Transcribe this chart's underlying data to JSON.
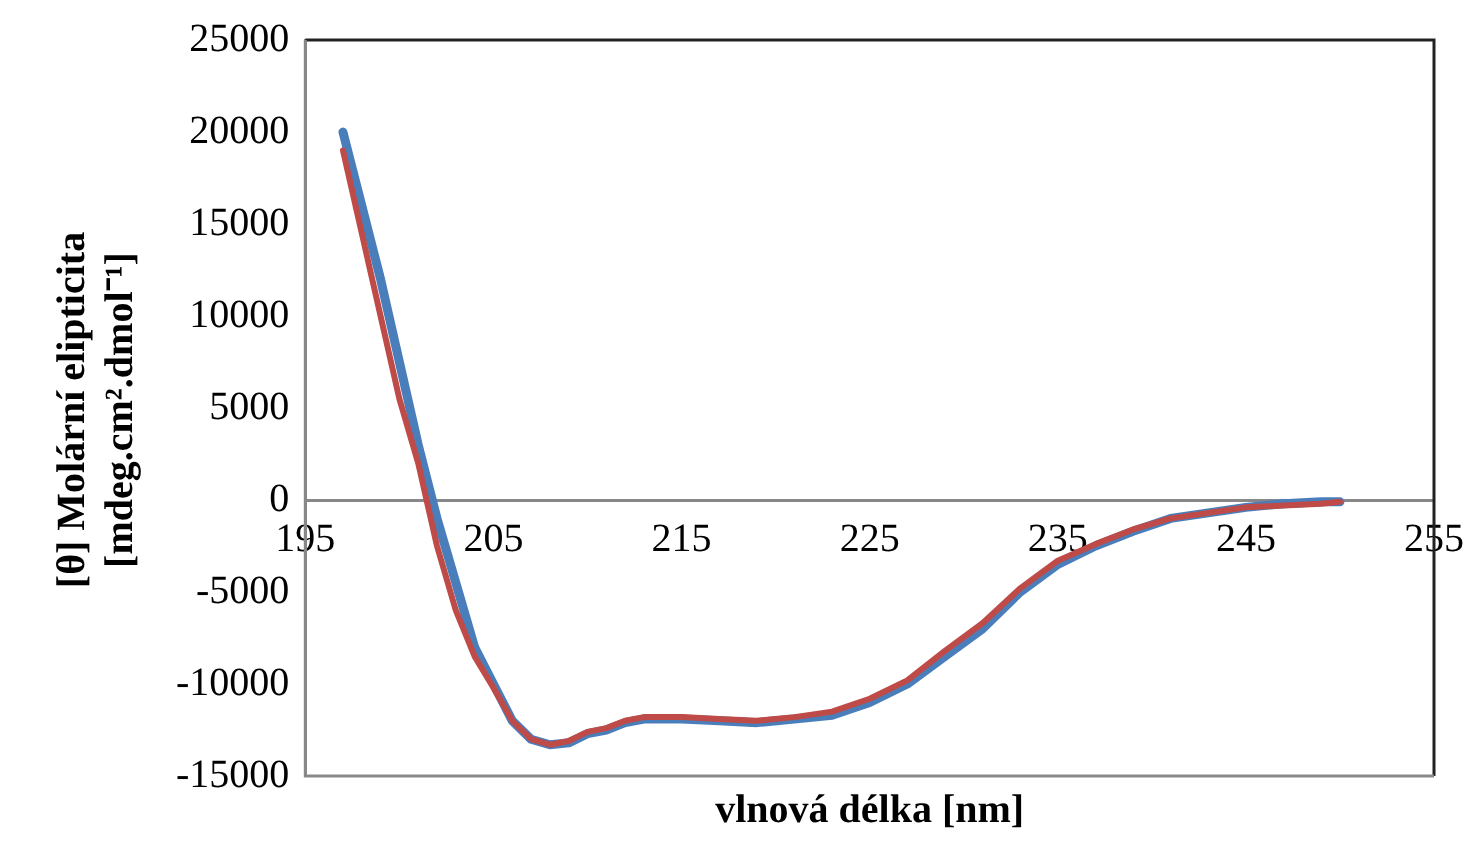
{
  "chart_data": {
    "type": "line",
    "xlabel": "vlnová délka [nm]",
    "ylabel": "[θ] Molární elipticita [mdeg.cm².dmol⁻¹]",
    "x": [
      197,
      198,
      199,
      200,
      201,
      202,
      203,
      204,
      205,
      206,
      207,
      208,
      209,
      210,
      211,
      212,
      213,
      215,
      217,
      219,
      221,
      223,
      225,
      227,
      229,
      231,
      233,
      235,
      237,
      239,
      241,
      243,
      245,
      247,
      249,
      250
    ],
    "series": [
      {
        "color": "#4a7ebb",
        "values": [
          20000,
          16000,
          12000,
          7500,
          3000,
          -1000,
          -4500,
          -8000,
          -10000,
          -12000,
          -13000,
          -13300,
          -13200,
          -12700,
          -12500,
          -12100,
          -11900,
          -11900,
          -12000,
          -12100,
          -11900,
          -11700,
          -11000,
          -10000,
          -8500,
          -7000,
          -5000,
          -3500,
          -2500,
          -1700,
          -1000,
          -700,
          -400,
          -200,
          -100,
          -100
        ]
      },
      {
        "color": "#be4b48",
        "values": [
          19000,
          14500,
          10000,
          5500,
          2000,
          -2500,
          -6000,
          -8500,
          -10200,
          -12000,
          -13000,
          -13300,
          -13100,
          -12600,
          -12400,
          -12000,
          -11800,
          -11800,
          -11900,
          -12000,
          -11800,
          -11500,
          -10800,
          -9800,
          -8200,
          -6700,
          -4800,
          -3300,
          -2400,
          -1600,
          -1000,
          -700,
          -400,
          -300,
          -200,
          -100
        ]
      }
    ],
    "xlim": [
      195,
      255
    ],
    "xticks": [
      195,
      205,
      215,
      225,
      235,
      245,
      255
    ],
    "ylim": [
      -15000,
      25000
    ],
    "yticks": [
      -15000,
      -10000,
      -5000,
      0,
      5000,
      10000,
      15000,
      20000,
      25000
    ],
    "grid": false,
    "legend": false,
    "marker": "none",
    "line_style": "solid"
  }
}
